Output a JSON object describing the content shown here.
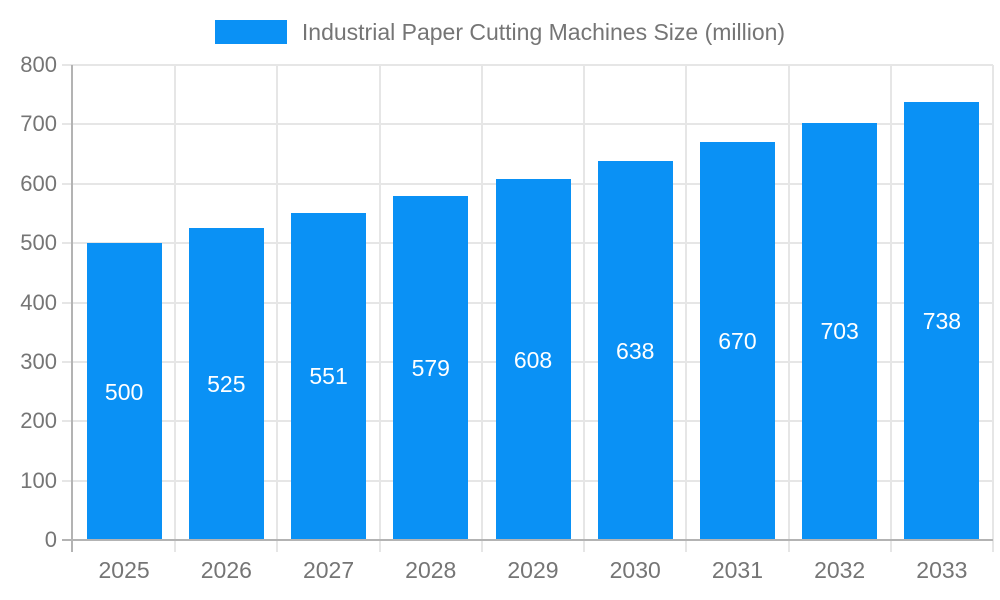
{
  "legend": {
    "label": "Industrial Paper Cutting Machines Size (million)",
    "swatch_color": "#0a91f5"
  },
  "chart_data": {
    "type": "bar",
    "title": "",
    "xlabel": "",
    "ylabel": "",
    "categories": [
      "2025",
      "2026",
      "2027",
      "2028",
      "2029",
      "2030",
      "2031",
      "2032",
      "2033"
    ],
    "series": [
      {
        "name": "Industrial Paper Cutting Machines Size (million)",
        "values": [
          500,
          525,
          551,
          579,
          608,
          638,
          670,
          703,
          738
        ]
      }
    ],
    "value_labels": [
      500,
      525,
      551,
      579,
      608,
      638,
      670,
      703,
      738
    ],
    "value_label_position": "inside-center",
    "ylim": [
      0,
      800
    ],
    "yticks": [
      0,
      100,
      200,
      300,
      400,
      500,
      600,
      700,
      800
    ],
    "grid": true,
    "legend_position": "top-center",
    "legend_entries": [
      "Industrial Paper Cutting Machines Size (million)"
    ],
    "colors": {
      "bar": "#0a91f5",
      "value_label": "#ffffff",
      "axis_label": "#757575",
      "axis_line": "#b3b3b3",
      "gridline": "#e6e6e6"
    }
  }
}
